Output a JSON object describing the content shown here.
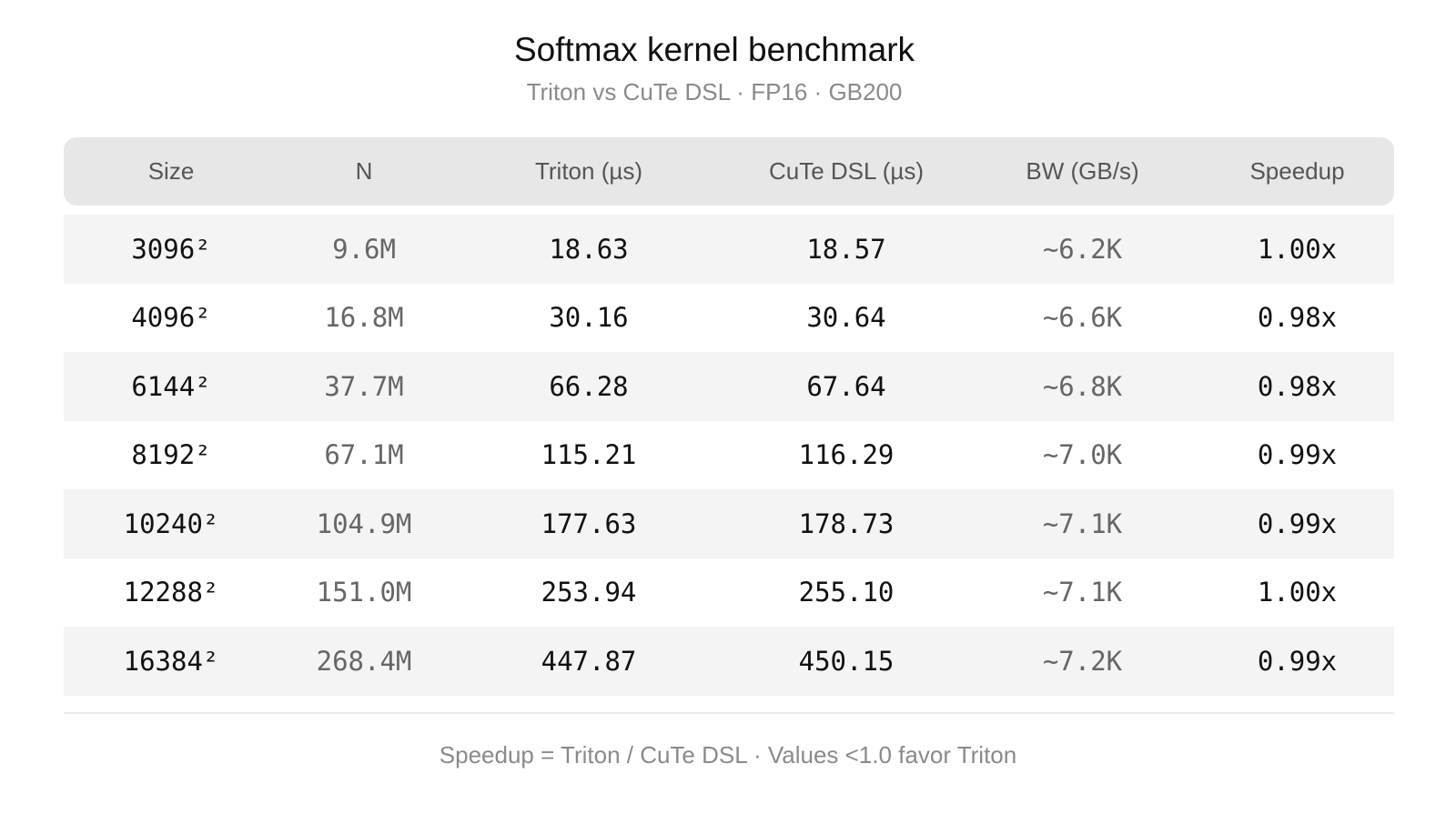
{
  "chart_data": {
    "type": "table",
    "title": "Softmax kernel benchmark",
    "subtitle": "Triton vs CuTe DSL · FP16 · GB200",
    "columns": [
      "Size",
      "N",
      "Triton (µs)",
      "CuTe DSL (µs)",
      "BW (GB/s)",
      "Speedup"
    ],
    "rows": [
      [
        "3096²",
        "9.6M",
        "18.63",
        "18.57",
        "~6.2K",
        "1.00x"
      ],
      [
        "4096²",
        "16.8M",
        "30.16",
        "30.64",
        "~6.6K",
        "0.98x"
      ],
      [
        "6144²",
        "37.7M",
        "66.28",
        "67.64",
        "~6.8K",
        "0.98x"
      ],
      [
        "8192²",
        "67.1M",
        "115.21",
        "116.29",
        "~7.0K",
        "0.99x"
      ],
      [
        "10240²",
        "104.9M",
        "177.63",
        "178.73",
        "~7.1K",
        "0.99x"
      ],
      [
        "12288²",
        "151.0M",
        "253.94",
        "255.10",
        "~7.1K",
        "1.00x"
      ],
      [
        "16384²",
        "268.4M",
        "447.87",
        "450.15",
        "~7.2K",
        "0.99x"
      ]
    ],
    "footnote": "Speedup = Triton / CuTe DSL · Values <1.0 favor Triton"
  },
  "colors": {
    "header_bg": "#e7e7e7",
    "row_shade": "#f4f4f4",
    "muted_text": "#8a8a8a"
  }
}
